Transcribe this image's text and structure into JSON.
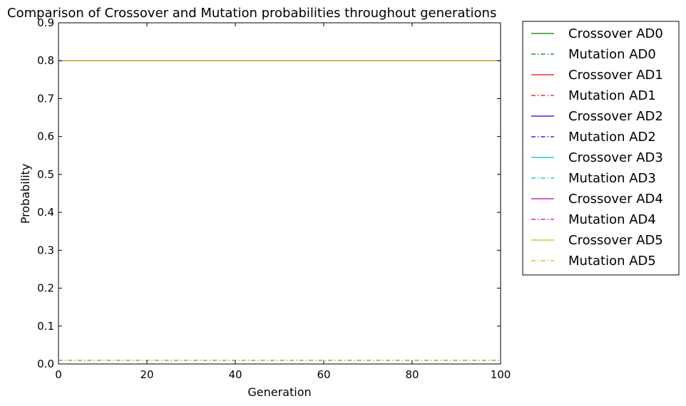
{
  "chart_data": {
    "type": "line",
    "title": "Comparison of Crossover and Mutation probabilities throughout generations",
    "xlabel": "Generation",
    "ylabel": "Probability",
    "xlim": [
      0,
      100
    ],
    "ylim": [
      0.0,
      0.9
    ],
    "xticks": [
      0,
      20,
      40,
      60,
      80,
      100
    ],
    "yticks": [
      "0.0",
      "0.1",
      "0.2",
      "0.3",
      "0.4",
      "0.5",
      "0.6",
      "0.7",
      "0.8",
      "0.9"
    ],
    "grid": false,
    "legend_position": "outside-right",
    "x": [
      0,
      100
    ],
    "series": [
      {
        "name": "Crossover AD0",
        "values": [
          0.8,
          0.8
        ],
        "color": "#008000",
        "style": "solid"
      },
      {
        "name": "Mutation AD0",
        "values": [
          0.01,
          0.01
        ],
        "color": "#008000",
        "style": "dashdot"
      },
      {
        "name": "Crossover AD1",
        "values": [
          0.8,
          0.8
        ],
        "color": "#ff0000",
        "style": "solid"
      },
      {
        "name": "Mutation AD1",
        "values": [
          0.01,
          0.01
        ],
        "color": "#ff0000",
        "style": "dashdot"
      },
      {
        "name": "Crossover AD2",
        "values": [
          0.8,
          0.8
        ],
        "color": "#0000ff",
        "style": "solid"
      },
      {
        "name": "Mutation AD2",
        "values": [
          0.01,
          0.01
        ],
        "color": "#0000ff",
        "style": "dashdot"
      },
      {
        "name": "Crossover AD3",
        "values": [
          0.8,
          0.8
        ],
        "color": "#00bfbf",
        "style": "solid"
      },
      {
        "name": "Mutation AD3",
        "values": [
          0.01,
          0.01
        ],
        "color": "#00bfbf",
        "style": "dashdot"
      },
      {
        "name": "Crossover AD4",
        "values": [
          0.8,
          0.8
        ],
        "color": "#bf00bf",
        "style": "solid"
      },
      {
        "name": "Mutation AD4",
        "values": [
          0.01,
          0.01
        ],
        "color": "#bf00bf",
        "style": "dashdot"
      },
      {
        "name": "Crossover AD5",
        "values": [
          0.8,
          0.8
        ],
        "color": "#bfbf00",
        "style": "solid"
      },
      {
        "name": "Mutation AD5",
        "values": [
          0.01,
          0.01
        ],
        "color": "#bfbf00",
        "style": "dashdot"
      }
    ]
  }
}
